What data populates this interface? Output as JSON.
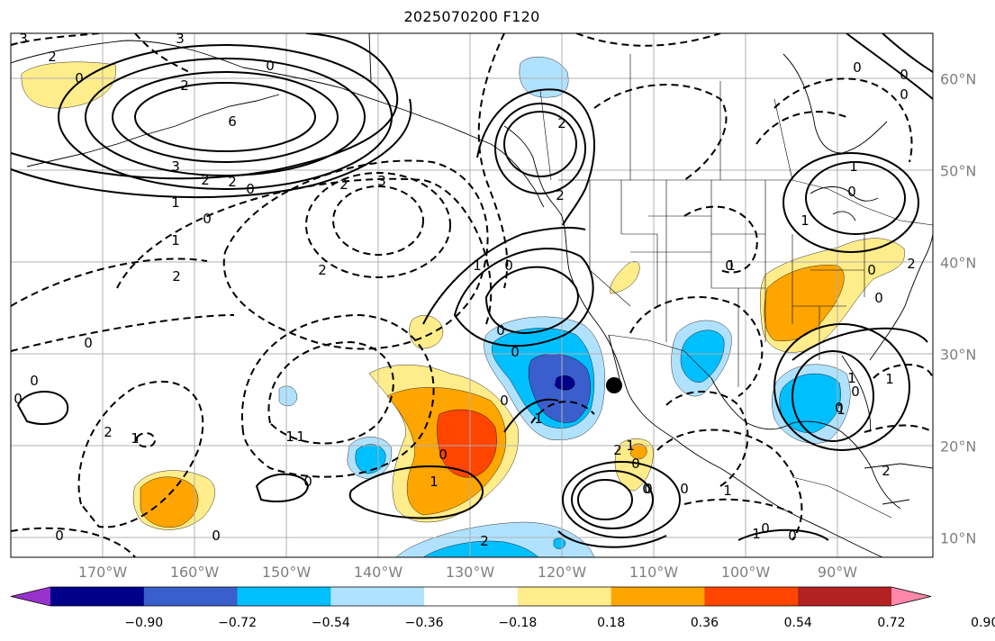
{
  "title": "2025070200 F120",
  "longitude_labels": [
    "170°W",
    "160°W",
    "150°W",
    "140°W",
    "130°W",
    "120°W",
    "110°W",
    "100°W",
    "90°W"
  ],
  "latitude_labels": [
    "60°N",
    "50°N",
    "40°N",
    "30°N",
    "20°N",
    "10°N"
  ],
  "colorbar": {
    "ticks": [
      "−0.90",
      "−0.72",
      "−0.54",
      "−0.36",
      "−0.18",
      "0.18",
      "0.36",
      "0.54",
      "0.72",
      "0.90"
    ],
    "colors": [
      "#9932cc",
      "#00008b",
      "#3a5fcd",
      "#00bfff",
      "#b0e2ff",
      "#ffffff",
      "#ffec8b",
      "#ffa500",
      "#ff4500",
      "#b22222",
      "#ff88aa"
    ]
  },
  "contour_labels": [
    "3",
    "3",
    "2",
    "0",
    "2",
    "0",
    "6",
    "3",
    "2",
    "2",
    "0",
    "1",
    "0",
    "1",
    "2",
    "3",
    "2",
    "2",
    "0",
    "1",
    "2",
    "2",
    "0",
    "0",
    "0",
    "1",
    "1",
    "0",
    "2",
    "0",
    "1",
    "0",
    "2",
    "0",
    "2",
    "0",
    "0",
    "1",
    "0",
    "1",
    "1",
    "0",
    "0",
    "0",
    "1",
    "0",
    "1",
    "2",
    "0",
    "0",
    "0",
    "0",
    "1",
    "1",
    "2",
    "0",
    "1",
    "0",
    "0",
    "1",
    "0",
    "0",
    "1",
    "1",
    "0",
    "0"
  ],
  "marker": "black-dot"
}
